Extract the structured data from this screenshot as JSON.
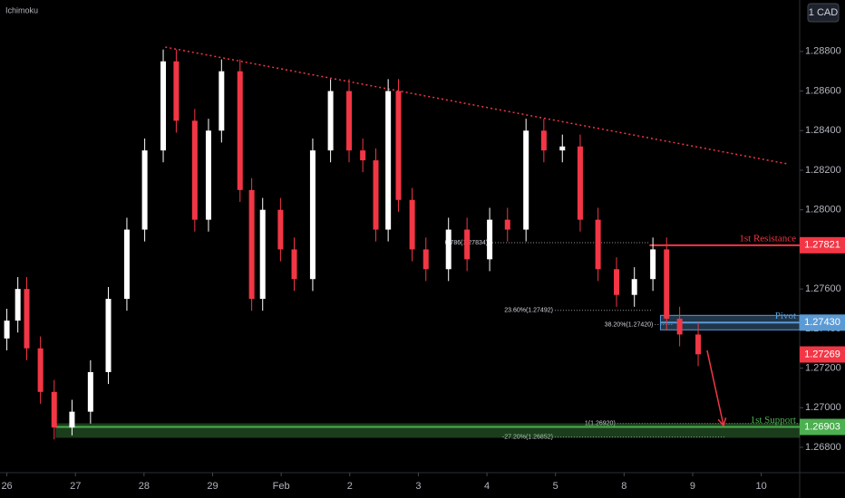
{
  "chart_data": {
    "type": "candlestick",
    "indicator": "Ichimoku",
    "currency": "1 CAD",
    "x": [
      0.0,
      0.16,
      0.29,
      0.49,
      0.69,
      0.95,
      1.22,
      1.48,
      1.75,
      2.01,
      2.28,
      2.47,
      2.74,
      2.94,
      3.13,
      3.4,
      3.57,
      3.73,
      3.99,
      4.19,
      4.46,
      4.72,
      4.99,
      5.19,
      5.38,
      5.56,
      5.71,
      5.91,
      6.11,
      6.44,
      6.71,
      7.04,
      7.3,
      7.57,
      7.83,
      8.1,
      8.36,
      8.62,
      8.89,
      9.15,
      9.42,
      9.62,
      9.81,
      10.08
    ],
    "open": [
      1.2735,
      1.2744,
      1.276,
      1.273,
      1.2708,
      1.269,
      1.2698,
      1.2718,
      1.2755,
      1.279,
      1.283,
      1.2875,
      1.2845,
      1.2795,
      1.284,
      1.287,
      1.281,
      1.2755,
      1.28,
      1.278,
      1.2765,
      1.283,
      1.286,
      1.283,
      1.2825,
      1.279,
      1.286,
      1.2805,
      1.278,
      1.277,
      1.279,
      1.2775,
      1.2795,
      1.279,
      1.284,
      1.283,
      1.2832,
      1.2795,
      1.277,
      1.2757,
      1.2765,
      1.278,
      1.2745,
      1.2737
    ],
    "high": [
      1.275,
      1.2766,
      1.2766,
      1.2736,
      1.2714,
      1.2704,
      1.2724,
      1.2761,
      1.2796,
      1.2836,
      1.2881,
      1.2881,
      1.2851,
      1.2846,
      1.2876,
      1.2876,
      1.2816,
      1.2806,
      1.2806,
      1.2786,
      1.2836,
      1.2866,
      1.2866,
      1.2836,
      1.2831,
      1.2866,
      1.2866,
      1.2811,
      1.2786,
      1.2796,
      1.2796,
      1.2801,
      1.2801,
      1.2846,
      1.2846,
      1.2838,
      1.2838,
      1.2801,
      1.2776,
      1.2771,
      1.2786,
      1.2786,
      1.2751,
      1.2743
    ],
    "low": [
      1.2729,
      1.2738,
      1.2724,
      1.2702,
      1.2684,
      1.2686,
      1.2692,
      1.2712,
      1.2749,
      1.2784,
      1.2824,
      1.2839,
      1.2789,
      1.2789,
      1.2834,
      1.2804,
      1.2749,
      1.2749,
      1.2774,
      1.2759,
      1.2759,
      1.2824,
      1.2824,
      1.2819,
      1.2784,
      1.2784,
      1.2799,
      1.2774,
      1.2764,
      1.2764,
      1.2769,
      1.2769,
      1.2784,
      1.2784,
      1.2824,
      1.2824,
      1.2789,
      1.2764,
      1.2751,
      1.2751,
      1.2759,
      1.2739,
      1.2731,
      1.2721
    ],
    "close": [
      1.2744,
      1.276,
      1.273,
      1.2708,
      1.269,
      1.2698,
      1.2718,
      1.2755,
      1.279,
      1.283,
      1.2875,
      1.2845,
      1.2795,
      1.284,
      1.287,
      1.281,
      1.2755,
      1.28,
      1.278,
      1.2765,
      1.283,
      1.286,
      1.283,
      1.2825,
      1.279,
      1.286,
      1.2805,
      1.278,
      1.277,
      1.279,
      1.2775,
      1.2795,
      1.279,
      1.284,
      1.283,
      1.2832,
      1.2795,
      1.277,
      1.2757,
      1.2765,
      1.278,
      1.2745,
      1.2737,
      1.2727
    ],
    "up_color": "#ffffff",
    "down_color": "#f23645",
    "xlim": [
      -0.1,
      11.56
    ],
    "xticks": [
      {
        "value": 0,
        "label": "26"
      },
      {
        "value": 1,
        "label": "27"
      },
      {
        "value": 2,
        "label": "28"
      },
      {
        "value": 3,
        "label": "29"
      },
      {
        "value": 4,
        "label": "Feb"
      },
      {
        "value": 5,
        "label": "2"
      },
      {
        "value": 6,
        "label": "3"
      },
      {
        "value": 7,
        "label": "4"
      },
      {
        "value": 8,
        "label": "5"
      },
      {
        "value": 9,
        "label": "8"
      },
      {
        "value": 10,
        "label": "9"
      },
      {
        "value": 11,
        "label": "10"
      }
    ],
    "ylim": [
      1.26672,
      1.2906
    ],
    "yticks": [
      {
        "value": 1.268,
        "label": "1.26800"
      },
      {
        "value": 1.27,
        "label": "1.27000"
      },
      {
        "value": 1.272,
        "label": "1.27200"
      },
      {
        "value": 1.274,
        "label": "1.27400"
      },
      {
        "value": 1.276,
        "label": "1.27600"
      },
      {
        "value": 1.278,
        "label": "1.27800"
      },
      {
        "value": 1.28,
        "label": "1.28000"
      },
      {
        "value": 1.282,
        "label": "1.28200"
      },
      {
        "value": 1.284,
        "label": "1.28400"
      },
      {
        "value": 1.286,
        "label": "1.28600"
      },
      {
        "value": 1.288,
        "label": "1.28800"
      }
    ],
    "levels": [
      {
        "name": "1st Resistance",
        "price": 1.27821,
        "color": "#f23645",
        "x_start": 9.37
      },
      {
        "name": "Pivot",
        "price": {
          "value": 1.2743,
          "label": "1.27430"
        },
        "color": "#5b9bd5",
        "x_start": 9.53
      },
      {
        "name": "1st Support",
        "price": 1.26903,
        "color": "#4caf50",
        "x_start": 0.71
      }
    ],
    "current_price": {
      "price": 1.27269,
      "color": "#f23645"
    },
    "fib_levels": [
      {
        "label": "0.786(1.27834)",
        "value": 1.27834,
        "x": [
          7.04,
          9.37
        ]
      },
      {
        "label": "23.60%(1.27492)",
        "value": 1.27492,
        "x": [
          7.99,
          9.42
        ]
      },
      {
        "label": "38.20%(1.27420)",
        "value": 1.2742,
        "x": [
          9.45,
          9.7
        ]
      },
      {
        "label": "1(1.26920)",
        "value": 1.2692,
        "x": [
          8.9,
          11.56
        ]
      },
      {
        "label": "-27.20%(1.26852)",
        "value": 1.26852,
        "x": [
          7.99,
          10.47
        ]
      }
    ],
    "trendline": {
      "x": [
        2.31,
        11.38
      ],
      "y": [
        1.28822,
        1.28232
      ],
      "color": "#f23645"
    },
    "projection": {
      "x": [
        10.21,
        10.45
      ],
      "y": [
        1.2729,
        1.2691
      ],
      "color": "#f23645"
    }
  }
}
